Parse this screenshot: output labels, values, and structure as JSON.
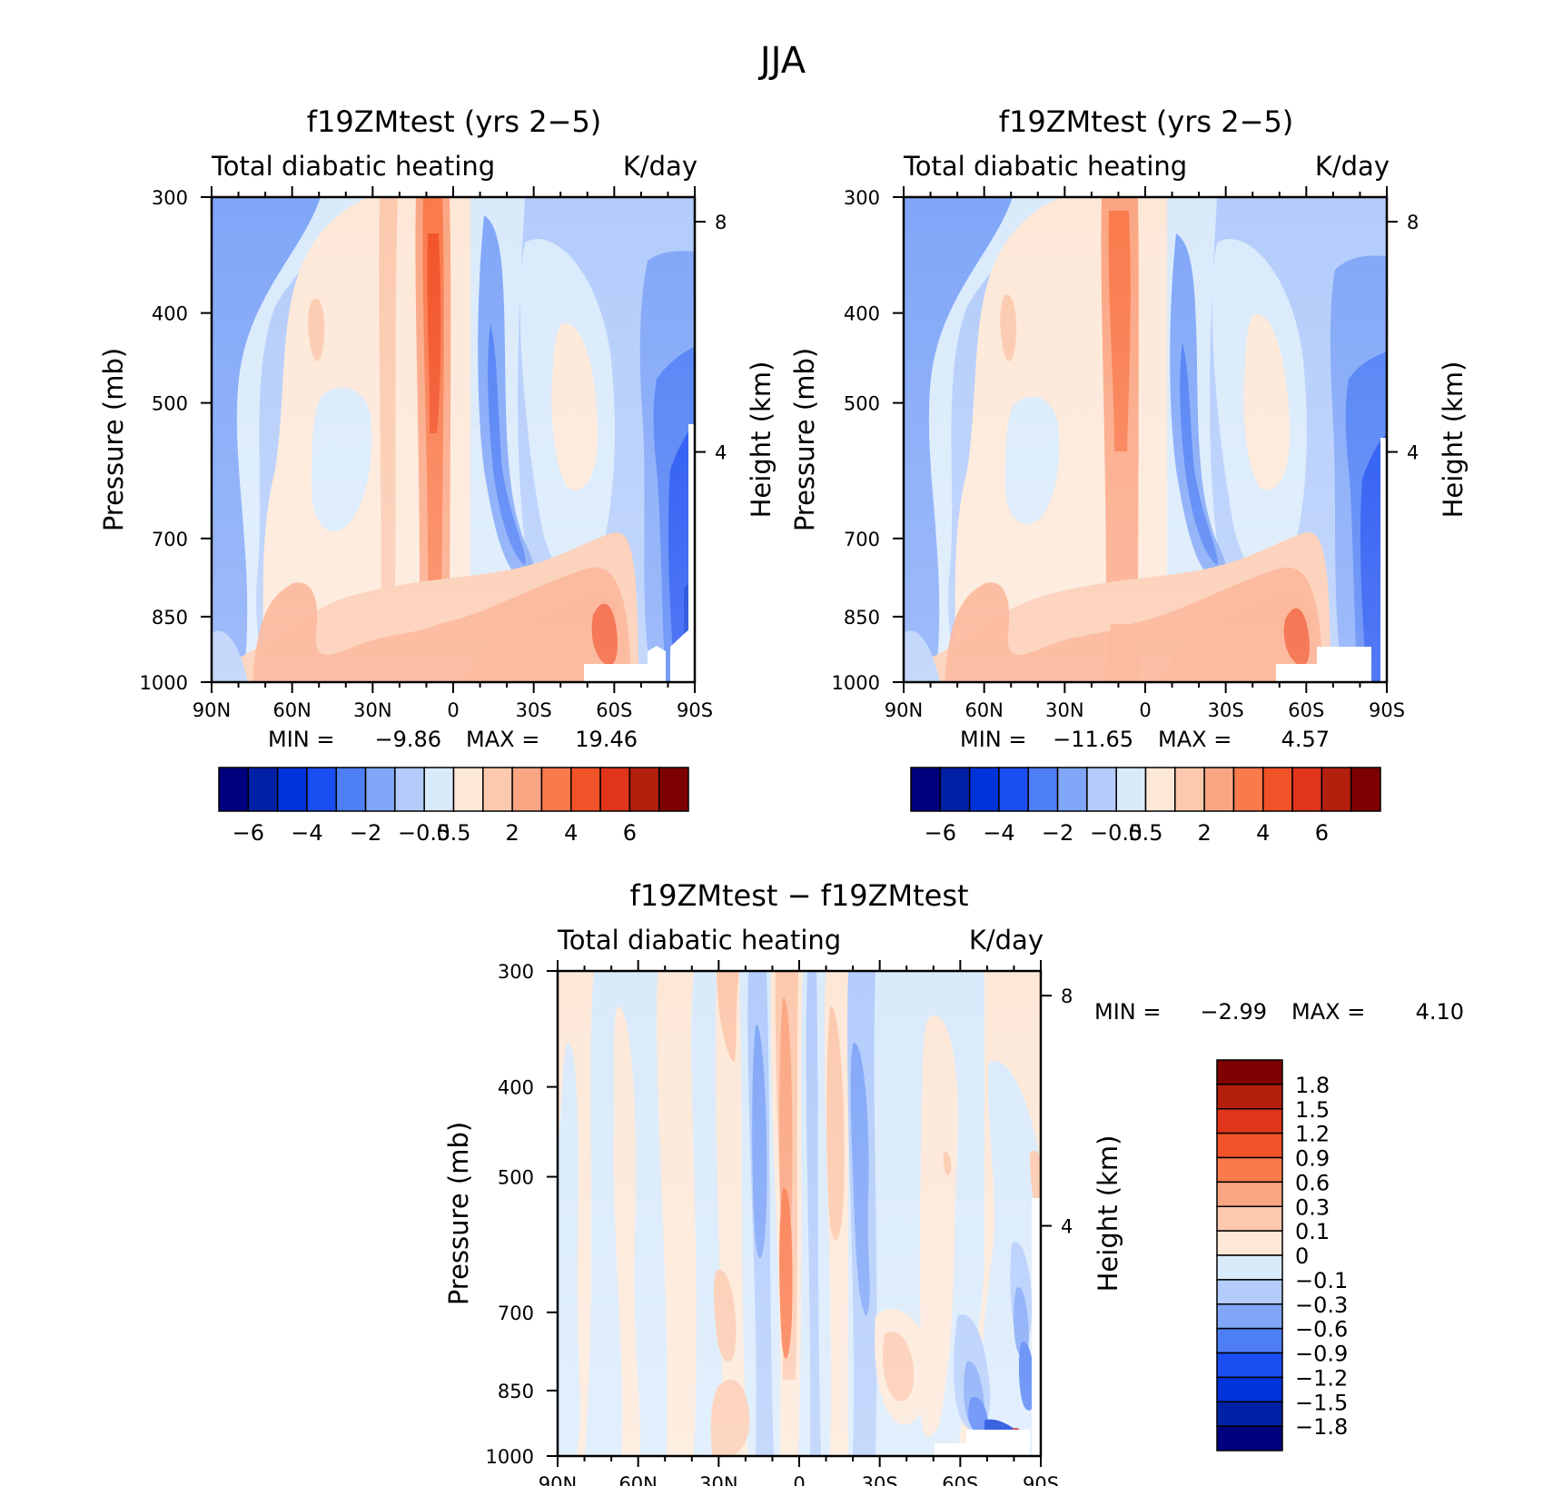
{
  "figure": {
    "title": "JJA"
  },
  "chart_data": [
    {
      "type": "heatmap",
      "title": "f19ZMtest (yrs 2−5)",
      "subtitle_left": "Total diabatic heating",
      "subtitle_right": "K/day",
      "ylabel": "Pressure (mb)",
      "ylabel_right": "Height (km)",
      "x_ticks": [
        {
          "value": 90,
          "label": "90N"
        },
        {
          "value": 60,
          "label": "60N"
        },
        {
          "value": 30,
          "label": "30N"
        },
        {
          "value": 0,
          "label": "0"
        },
        {
          "value": -30,
          "label": "30S"
        },
        {
          "value": -60,
          "label": "60S"
        },
        {
          "value": -90,
          "label": "90S"
        }
      ],
      "xlim": [
        90,
        -90
      ],
      "y_ticks": [
        {
          "value": 300,
          "label": "300"
        },
        {
          "value": 400,
          "label": "400"
        },
        {
          "value": 500,
          "label": "500"
        },
        {
          "value": 700,
          "label": "700"
        },
        {
          "value": 850,
          "label": "850"
        },
        {
          "value": 1000,
          "label": "1000"
        }
      ],
      "ylim": [
        1000,
        300
      ],
      "y_scale": "log",
      "right_ticks": [
        {
          "value": 8,
          "label": "8"
        },
        {
          "value": 4,
          "label": "4"
        }
      ],
      "stats": {
        "min_label": "MIN =",
        "min": "−9.86",
        "max_label": "MAX =",
        "max": "19.46"
      },
      "colorbar": {
        "orientation": "horizontal",
        "labels": [
          "−6",
          "−4",
          "−2",
          "−0.5",
          "0.5",
          "2",
          "4",
          "6"
        ]
      }
    },
    {
      "type": "heatmap",
      "title": "f19ZMtest (yrs 2−5)",
      "subtitle_left": "Total diabatic heating",
      "subtitle_right": "K/day",
      "ylabel": "Pressure (mb)",
      "ylabel_right": "Height (km)",
      "x_ticks": [
        {
          "value": 90,
          "label": "90N"
        },
        {
          "value": 60,
          "label": "60N"
        },
        {
          "value": 30,
          "label": "30N"
        },
        {
          "value": 0,
          "label": "0"
        },
        {
          "value": -30,
          "label": "30S"
        },
        {
          "value": -60,
          "label": "60S"
        },
        {
          "value": -90,
          "label": "90S"
        }
      ],
      "xlim": [
        90,
        -90
      ],
      "y_ticks": [
        {
          "value": 300,
          "label": "300"
        },
        {
          "value": 400,
          "label": "400"
        },
        {
          "value": 500,
          "label": "500"
        },
        {
          "value": 700,
          "label": "700"
        },
        {
          "value": 850,
          "label": "850"
        },
        {
          "value": 1000,
          "label": "1000"
        }
      ],
      "ylim": [
        1000,
        300
      ],
      "y_scale": "log",
      "right_ticks": [
        {
          "value": 8,
          "label": "8"
        },
        {
          "value": 4,
          "label": "4"
        }
      ],
      "stats": {
        "min_label": "MIN =",
        "min": "−11.65",
        "max_label": "MAX =",
        "max": "4.57"
      },
      "colorbar": {
        "orientation": "horizontal",
        "labels": [
          "−6",
          "−4",
          "−2",
          "−0.5",
          "0.5",
          "2",
          "4",
          "6"
        ]
      }
    },
    {
      "type": "heatmap",
      "title": "f19ZMtest − f19ZMtest",
      "subtitle_left": "Total diabatic heating",
      "subtitle_right": "K/day",
      "ylabel": "Pressure (mb)",
      "ylabel_right": "Height (km)",
      "x_ticks": [
        {
          "value": 90,
          "label": "90N"
        },
        {
          "value": 60,
          "label": "60N"
        },
        {
          "value": 30,
          "label": "30N"
        },
        {
          "value": 0,
          "label": "0"
        },
        {
          "value": -30,
          "label": "30S"
        },
        {
          "value": -60,
          "label": "60S"
        },
        {
          "value": -90,
          "label": "90S"
        }
      ],
      "xlim": [
        90,
        -90
      ],
      "y_ticks": [
        {
          "value": 300,
          "label": "300"
        },
        {
          "value": 400,
          "label": "400"
        },
        {
          "value": 500,
          "label": "500"
        },
        {
          "value": 700,
          "label": "700"
        },
        {
          "value": 850,
          "label": "850"
        },
        {
          "value": 1000,
          "label": "1000"
        }
      ],
      "ylim": [
        1000,
        300
      ],
      "y_scale": "log",
      "right_ticks": [
        {
          "value": 8,
          "label": "8"
        },
        {
          "value": 4,
          "label": "4"
        }
      ],
      "stats": {
        "min_label": "MIN =",
        "min": "−2.99",
        "max_label": "MAX =",
        "max": "4.10"
      },
      "colorbar": {
        "orientation": "vertical",
        "labels": [
          "1.8",
          "1.5",
          "1.2",
          "0.9",
          "0.6",
          "0.3",
          "0.1",
          "0",
          "−0.1",
          "−0.3",
          "−0.6",
          "−0.9",
          "−1.2",
          "−1.5",
          "−1.8"
        ]
      }
    }
  ],
  "colors": {
    "palette": [
      "#00007f",
      "#0021a6",
      "#0033d9",
      "#1a4df2",
      "#4d7ef5",
      "#80a6f8",
      "#b3ccfb",
      "#d9eafb",
      "#fde8d8",
      "#fcc9ae",
      "#fba683",
      "#fa7a4c",
      "#f25227",
      "#e0351a",
      "#b41f0e",
      "#7f0000"
    ]
  }
}
